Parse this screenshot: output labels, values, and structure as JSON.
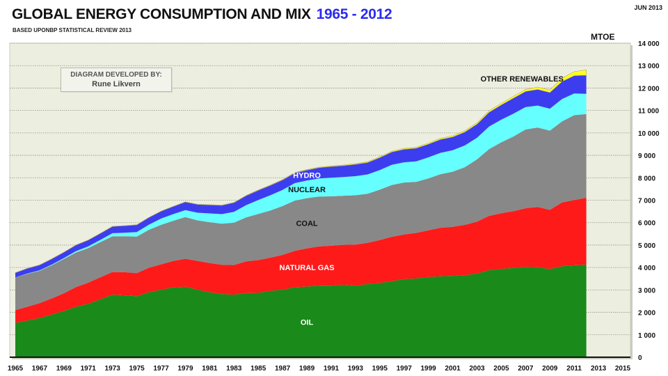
{
  "header": {
    "title": "GLOBAL ENERGY CONSUMPTION AND MIX",
    "title_years": "1965 - 2012",
    "subtitle": "BASED UPONBP STATISTICAL REVIEW 2013",
    "date": "JUN 2013",
    "unit": "MTOE"
  },
  "credit": {
    "line1": "DIAGRAM DEVELOPED BY:",
    "line2": "Rune Likvern"
  },
  "chart_data": {
    "type": "area",
    "stacked": true,
    "title": "GLOBAL ENERGY CONSUMPTION AND MIX 1965 - 2012",
    "subtitle": "BASED UPONBP STATISTICAL REVIEW 2013",
    "ylabel": "MTOE",
    "xlabel": "",
    "ylim": [
      0,
      14000
    ],
    "xlim": [
      1965,
      2015
    ],
    "y_axis_side": "right",
    "grid": true,
    "x_ticks": [
      "1965",
      "1967",
      "1969",
      "1971",
      "1973",
      "1975",
      "1977",
      "1979",
      "1981",
      "1983",
      "1985",
      "1987",
      "1989",
      "1991",
      "1993",
      "1995",
      "1997",
      "1999",
      "2001",
      "2003",
      "2005",
      "2007",
      "2009",
      "2011",
      "2013",
      "2015"
    ],
    "y_ticks": [
      "0",
      "1 000",
      "2 000",
      "3 000",
      "4 000",
      "5 000",
      "6 000",
      "7 000",
      "8 000",
      "9 000",
      "10 000",
      "11 000",
      "12 000",
      "13 000",
      "14 000"
    ],
    "x": [
      1965,
      1966,
      1967,
      1968,
      1969,
      1970,
      1971,
      1972,
      1973,
      1974,
      1975,
      1976,
      1977,
      1978,
      1979,
      1980,
      1981,
      1982,
      1983,
      1984,
      1985,
      1986,
      1987,
      1988,
      1989,
      1990,
      1991,
      1992,
      1993,
      1994,
      1995,
      1996,
      1997,
      1998,
      1999,
      2000,
      2001,
      2002,
      2003,
      2004,
      2005,
      2006,
      2007,
      2008,
      2009,
      2010,
      2011,
      2012
    ],
    "series": [
      {
        "name": "OIL",
        "color": "#1a8a1a",
        "label_color": "#ffffff",
        "values": [
          1530,
          1640,
          1750,
          1900,
          2060,
          2250,
          2380,
          2580,
          2790,
          2760,
          2720,
          2900,
          3010,
          3110,
          3140,
          3010,
          2900,
          2820,
          2790,
          2860,
          2870,
          2960,
          3010,
          3120,
          3150,
          3190,
          3190,
          3230,
          3190,
          3260,
          3310,
          3390,
          3480,
          3510,
          3580,
          3610,
          3630,
          3660,
          3730,
          3880,
          3940,
          3980,
          4030,
          4010,
          3930,
          4060,
          4100,
          4130
        ]
      },
      {
        "name": "NATURAL GAS",
        "color": "#ff1a1a",
        "label_color": "#ffffff",
        "values": [
          570,
          610,
          660,
          720,
          790,
          880,
          940,
          980,
          1010,
          1030,
          1030,
          1090,
          1130,
          1180,
          1250,
          1280,
          1300,
          1300,
          1320,
          1410,
          1460,
          1480,
          1550,
          1620,
          1700,
          1750,
          1780,
          1780,
          1830,
          1840,
          1910,
          1980,
          1990,
          2030,
          2080,
          2160,
          2180,
          2240,
          2310,
          2420,
          2480,
          2530,
          2610,
          2690,
          2640,
          2840,
          2910,
          2980
        ]
      },
      {
        "name": "COAL",
        "color": "#888888",
        "label_color": "#111111",
        "values": [
          1450,
          1470,
          1440,
          1480,
          1530,
          1540,
          1540,
          1570,
          1590,
          1600,
          1630,
          1690,
          1760,
          1790,
          1860,
          1810,
          1820,
          1830,
          1890,
          1960,
          2060,
          2100,
          2180,
          2240,
          2240,
          2220,
          2200,
          2190,
          2200,
          2190,
          2250,
          2310,
          2320,
          2280,
          2310,
          2390,
          2460,
          2570,
          2780,
          2980,
          3160,
          3330,
          3510,
          3540,
          3530,
          3610,
          3780,
          3730
        ]
      },
      {
        "name": "NUCLEAR",
        "color": "#66ffff",
        "label_color": "#111111",
        "values": [
          5,
          10,
          20,
          30,
          40,
          60,
          80,
          100,
          140,
          160,
          200,
          230,
          280,
          300,
          310,
          340,
          390,
          430,
          480,
          550,
          620,
          680,
          720,
          780,
          790,
          810,
          830,
          830,
          850,
          860,
          870,
          900,
          900,
          910,
          940,
          950,
          960,
          970,
          960,
          1000,
          1010,
          1020,
          1000,
          980,
          980,
          1000,
          970,
          900
        ]
      },
      {
        "name": "HYDRO",
        "color": "#3d3df0",
        "label_color": "#ffffff",
        "values": [
          210,
          230,
          240,
          250,
          260,
          270,
          280,
          290,
          300,
          310,
          320,
          320,
          330,
          340,
          360,
          370,
          380,
          390,
          410,
          420,
          430,
          440,
          440,
          450,
          460,
          480,
          500,
          510,
          530,
          530,
          560,
          570,
          580,
          590,
          590,
          600,
          590,
          600,
          610,
          640,
          660,
          690,
          700,
          720,
          720,
          780,
          790,
          830
        ]
      },
      {
        "name": "OTHER RENEWABLES",
        "color": "#ffff22",
        "label_color": "#111111",
        "values": [
          5,
          5,
          5,
          5,
          5,
          5,
          5,
          5,
          6,
          6,
          6,
          7,
          7,
          8,
          8,
          9,
          10,
          11,
          12,
          14,
          16,
          18,
          20,
          22,
          24,
          26,
          28,
          30,
          32,
          34,
          36,
          38,
          40,
          42,
          45,
          50,
          52,
          55,
          60,
          65,
          70,
          80,
          90,
          100,
          115,
          150,
          180,
          240
        ]
      }
    ],
    "annotations": [
      {
        "text": "OIL",
        "series": "OIL"
      },
      {
        "text": "NATURAL GAS",
        "series": "NATURAL GAS"
      },
      {
        "text": "COAL",
        "series": "COAL"
      },
      {
        "text": "NUCLEAR",
        "series": "NUCLEAR"
      },
      {
        "text": "HYDRO",
        "series": "HYDRO"
      },
      {
        "text": "OTHER RENEWABLES",
        "series": "OTHER RENEWABLES"
      }
    ],
    "legend": "inline-labels"
  },
  "colors": {
    "plot_background": "#ecefdf",
    "title_accent": "#2b2bee"
  }
}
